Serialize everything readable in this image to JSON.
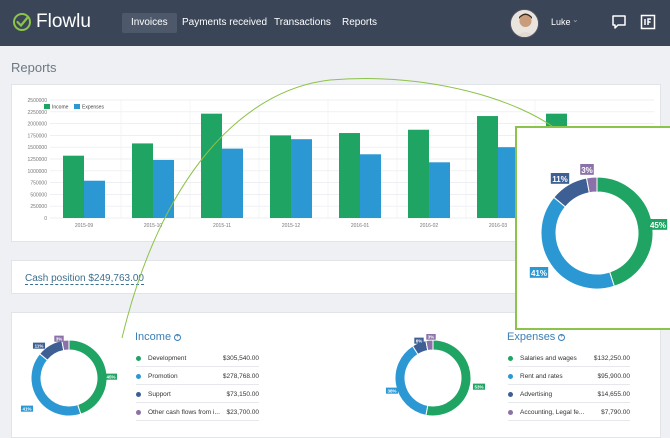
{
  "app": {
    "name": "Flowlu"
  },
  "colors": {
    "topbar": "#3a4658",
    "green": "#1fa463",
    "blue": "#2b98d4",
    "darkblue": "#3e5f94",
    "purple": "#8a72a8",
    "accent": "#8cc34a"
  },
  "nav": {
    "items": [
      {
        "label": "Invoices",
        "active": true
      },
      {
        "label": "Payments received",
        "active": false
      },
      {
        "label": "Transactions",
        "active": false
      },
      {
        "label": "Reports",
        "active": false
      }
    ]
  },
  "user": {
    "name": "Luke",
    "caret": "⌄",
    "icons": [
      "chat-icon",
      "invoice-icon"
    ]
  },
  "page": {
    "title": "Reports"
  },
  "cash": {
    "label": "Cash position $249,763.00"
  },
  "chart_data": [
    {
      "type": "bar",
      "categories": [
        "2015-09",
        "2015-10",
        "2015-11",
        "2015-12",
        "2016-01",
        "2016-02",
        "2016-03"
      ],
      "series": [
        {
          "name": "Income",
          "color": "#1fa463",
          "values": [
            1320000,
            1580000,
            2210000,
            1750000,
            1800000,
            1870000,
            2160000
          ]
        },
        {
          "name": "Expenses",
          "color": "#2b98d4",
          "values": [
            790000,
            1230000,
            1470000,
            1670000,
            1350000,
            1180000,
            1500000
          ]
        }
      ],
      "extra_income_bar": 2210000,
      "ylim": [
        0,
        2500000
      ],
      "yticks": [
        "2500000",
        "2250000",
        "2000000",
        "1750000",
        "1500000",
        "1250000",
        "1000000",
        "750000",
        "500000",
        "250000",
        "0"
      ],
      "legend": "top-left",
      "grid": true
    },
    {
      "type": "pie",
      "name": "Income",
      "slices": [
        {
          "label": "Development",
          "value": 45,
          "color": "#1fa463",
          "pct": "45%",
          "amount": "$305,540.00"
        },
        {
          "label": "Promotion",
          "value": 41,
          "color": "#2b98d4",
          "pct": "41%",
          "amount": "$278,768.00"
        },
        {
          "label": "Support",
          "value": 11,
          "color": "#3e5f94",
          "pct": "11%",
          "amount": "$73,150.00"
        },
        {
          "label": "Other cash flows from i...",
          "value": 3,
          "color": "#8a72a8",
          "pct": "3%",
          "amount": "$23,700.00"
        }
      ]
    },
    {
      "type": "pie",
      "name": "Expenses",
      "slices": [
        {
          "label": "Salaries and wages",
          "value": 53,
          "color": "#1fa463",
          "pct": "53%",
          "amount": "$132,250.00"
        },
        {
          "label": "Rent and rates",
          "value": 38,
          "color": "#2b98d4",
          "pct": "38%",
          "amount": "$95,900.00"
        },
        {
          "label": "Advertising",
          "value": 6,
          "color": "#3e5f94",
          "pct": "6%",
          "amount": "$14,655.00"
        },
        {
          "label": "Accounting, Legal fe...",
          "value": 3,
          "color": "#8a72a8",
          "pct": "3%",
          "amount": "$7,790.00"
        }
      ]
    }
  ],
  "income": {
    "title": "Income",
    "plus": "+"
  },
  "expenses": {
    "title": "Expenses",
    "plus": "+"
  }
}
